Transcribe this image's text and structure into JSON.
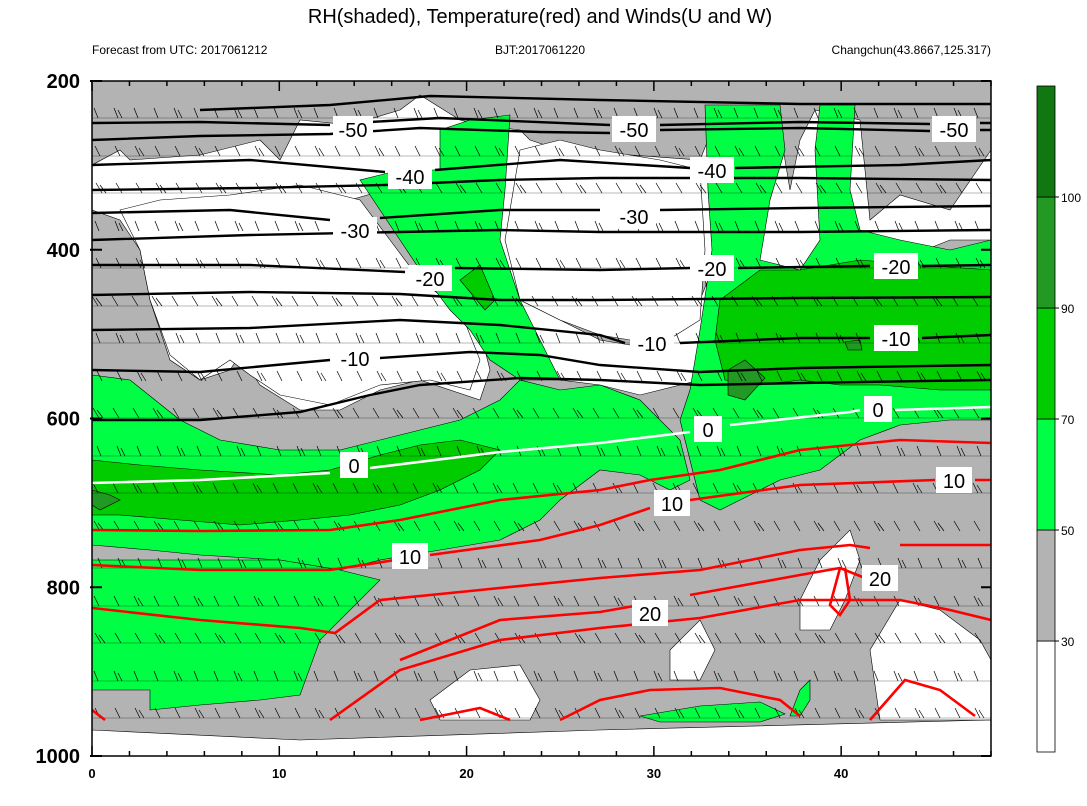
{
  "chart_data": {
    "type": "contour",
    "title": "RH(shaded), Temperature(red) and Winds(U and W)",
    "subtitle_left": "Forecast from UTC: 2017061212",
    "subtitle_center": "BJT:2017061220",
    "subtitle_right": "Changchun(43.8667,125.317)",
    "xlabel": "",
    "ylabel": "",
    "x_range": [
      0,
      48
    ],
    "x_ticks": [
      0,
      10,
      20,
      30,
      40
    ],
    "x_tick_labels": [
      "0",
      "10",
      "20",
      "30",
      "40"
    ],
    "y_range": [
      200,
      1000
    ],
    "y_inverted": true,
    "y_ticks": [
      200,
      400,
      600,
      800,
      1000
    ],
    "y_tick_labels": [
      "200",
      "400",
      "600",
      "800",
      "1000"
    ],
    "colorbar": {
      "levels": [
        30,
        50,
        70,
        90,
        100
      ],
      "level_labels": [
        "30",
        "50",
        "70",
        "90",
        "100"
      ],
      "colors": [
        "#ffffff",
        "#b3b3b3",
        "#00ff44",
        "#00cc00",
        "#229922",
        "#117711"
      ]
    },
    "temperature_contours": [
      {
        "value": -50,
        "label": "-50",
        "color": "#000000"
      },
      {
        "value": -40,
        "label": "-40",
        "color": "#000000"
      },
      {
        "value": -30,
        "label": "-30",
        "color": "#000000"
      },
      {
        "value": -20,
        "label": "-20",
        "color": "#000000"
      },
      {
        "value": -10,
        "label": "-10",
        "color": "#000000"
      },
      {
        "value": 0,
        "label": "0",
        "color": "#ffffff"
      },
      {
        "value": 10,
        "label": "10",
        "color": "#ff0000"
      },
      {
        "value": 20,
        "label": "20",
        "color": "#ff0000"
      }
    ],
    "grid": false
  }
}
